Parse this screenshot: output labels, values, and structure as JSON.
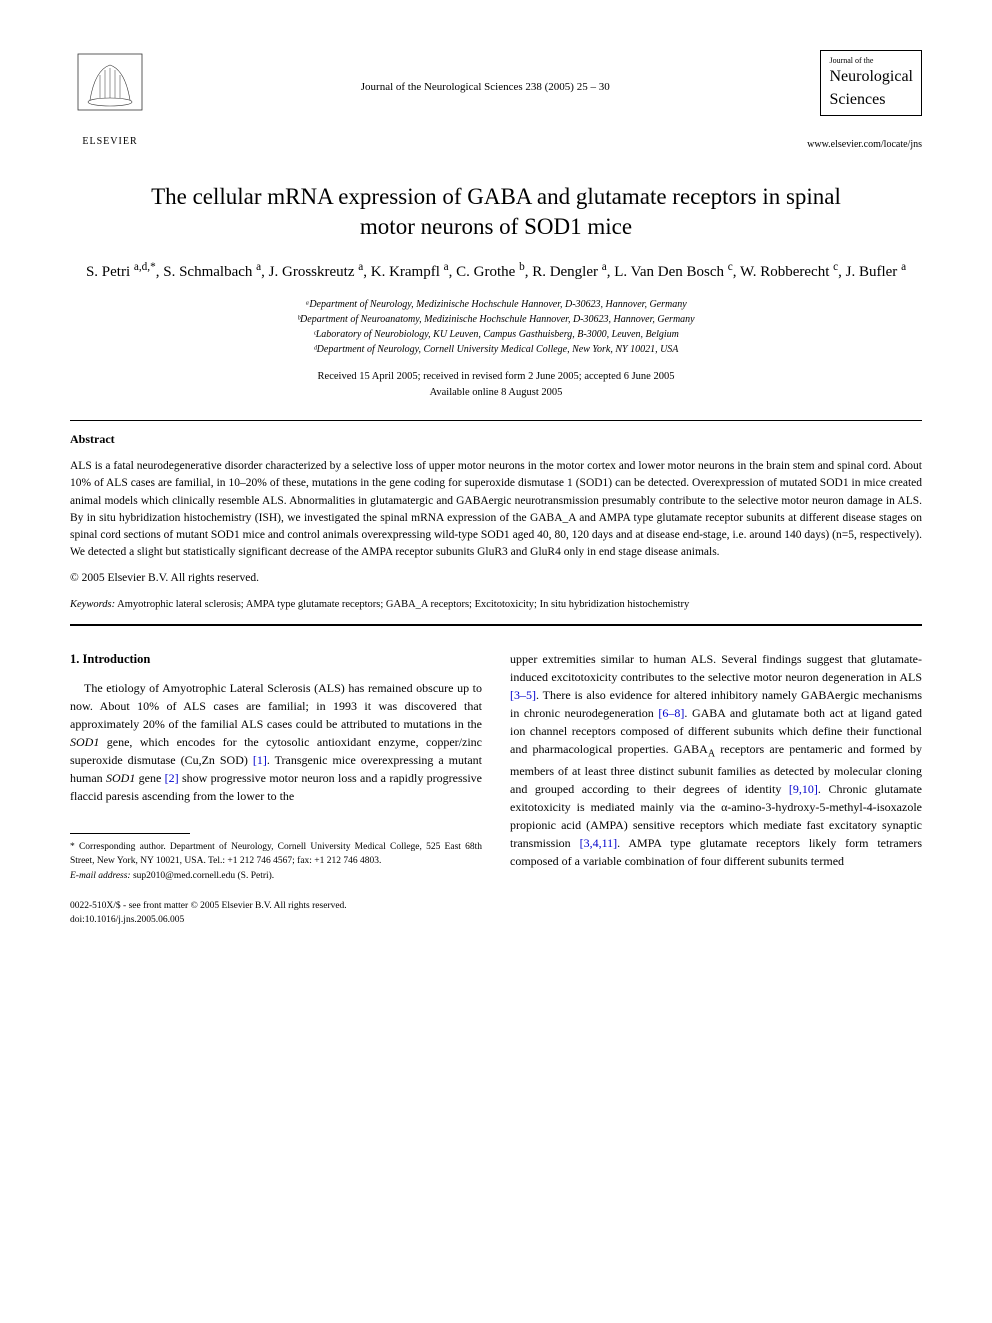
{
  "header": {
    "publisher_name": "ELSEVIER",
    "journal_ref": "Journal of the Neurological Sciences 238 (2005) 25 – 30",
    "journal_small": "Journal of the",
    "journal_main1": "Neurological",
    "journal_main2": "Sciences",
    "journal_url": "www.elsevier.com/locate/jns"
  },
  "title": "The cellular mRNA expression of GABA and glutamate receptors in spinal motor neurons of SOD1 mice",
  "authors_html": "S. Petri <sup>a,d,*</sup>, S. Schmalbach <sup>a</sup>, J. Grosskreutz <sup>a</sup>, K. Krampfl <sup>a</sup>, C. Grothe <sup>b</sup>, R. Dengler <sup>a</sup>, L. Van Den Bosch <sup>c</sup>, W. Robberecht <sup>c</sup>, J. Bufler <sup>a</sup>",
  "affiliations": [
    "ᵃDepartment of Neurology, Medizinische Hochschule Hannover, D-30623, Hannover, Germany",
    "ᵇDepartment of Neuroanatomy, Medizinische Hochschule Hannover, D-30623, Hannover, Germany",
    "ᶜLaboratory of Neurobiology, KU Leuven, Campus Gasthuisberg, B-3000, Leuven, Belgium",
    "ᵈDepartment of Neurology, Cornell University Medical College, New York, NY 10021, USA"
  ],
  "dates": {
    "received": "Received 15 April 2005; received in revised form 2 June 2005; accepted 6 June 2005",
    "online": "Available online 8 August 2005"
  },
  "abstract": {
    "heading": "Abstract",
    "text": "ALS is a fatal neurodegenerative disorder characterized by a selective loss of upper motor neurons in the motor cortex and lower motor neurons in the brain stem and spinal cord. About 10% of ALS cases are familial, in 10–20% of these, mutations in the gene coding for superoxide dismutase 1 (SOD1) can be detected. Overexpression of mutated SOD1 in mice created animal models which clinically resemble ALS. Abnormalities in glutamatergic and GABAergic neurotransmission presumably contribute to the selective motor neuron damage in ALS. By in situ hybridization histochemistry (ISH), we investigated the spinal mRNA expression of the GABA_A and AMPA type glutamate receptor subunits at different disease stages on spinal cord sections of mutant SOD1 mice and control animals overexpressing wild-type SOD1 aged 40, 80, 120 days and at disease end-stage, i.e. around 140 days) (n=5, respectively). We detected a slight but statistically significant decrease of the AMPA receptor subunits GluR3 and GluR4 only in end stage disease animals.",
    "copyright": "© 2005 Elsevier B.V. All rights reserved."
  },
  "keywords": {
    "label": "Keywords:",
    "text": " Amyotrophic lateral sclerosis; AMPA type glutamate receptors; GABA_A receptors; Excitotoxicity; In situ hybridization histochemistry"
  },
  "intro": {
    "heading": "1. Introduction",
    "col1_html": "The etiology of Amyotrophic Lateral Sclerosis (ALS) has remained obscure up to now. About 10% of ALS cases are familial; in 1993 it was discovered that approximately 20% of the familial ALS cases could be attributed to mutations in the <i>SOD1</i> gene, which encodes for the cytosolic antioxidant enzyme, copper/zinc superoxide dismutase (Cu,Zn SOD) <span class=\"ref-link\">[1]</span>. Transgenic mice overexpressing a mutant human <i>SOD1</i> gene <span class=\"ref-link\">[2]</span> show progressive motor neuron loss and a rapidly progressive flaccid paresis ascending from the lower to the",
    "col2_html": "upper extremities similar to human ALS. Several findings suggest that glutamate-induced excitotoxicity contributes to the selective motor neuron degeneration in ALS <span class=\"ref-link\">[3–5]</span>. There is also evidence for altered inhibitory namely GABAergic mechanisms in chronic neurodegeneration <span class=\"ref-link\">[6–8]</span>. GABA and glutamate both act at ligand gated ion channel receptors composed of different subunits which define their functional and pharmacological properties. GABA<sub>A</sub> receptors are pentameric and formed by members of at least three distinct subunit families as detected by molecular cloning and grouped according to their degrees of identity <span class=\"ref-link\">[9,10]</span>. Chronic glutamate exitotoxicity is mediated mainly via the α-amino-3-hydroxy-5-methyl-4-isoxazole propionic acid (AMPA) sensitive receptors which mediate fast excitatory synaptic transmission <span class=\"ref-link\">[3,4,11]</span>. AMPA type glutamate receptors likely form tetramers composed of a variable combination of four different subunits termed"
  },
  "footer": {
    "corresponding": "* Corresponding author. Department of Neurology, Cornell University Medical College, 525 East 68th Street, New York, NY 10021, USA. Tel.: +1 212 746 4567; fax: +1 212 746 4803.",
    "email_label": "E-mail address:",
    "email": " sup2010@med.cornell.edu (S. Petri).",
    "issn": "0022-510X/$ - see front matter © 2005 Elsevier B.V. All rights reserved.",
    "doi": "doi:10.1016/j.jns.2005.06.005"
  },
  "colors": {
    "text": "#000000",
    "link": "#0000cc",
    "bg": "#ffffff"
  }
}
